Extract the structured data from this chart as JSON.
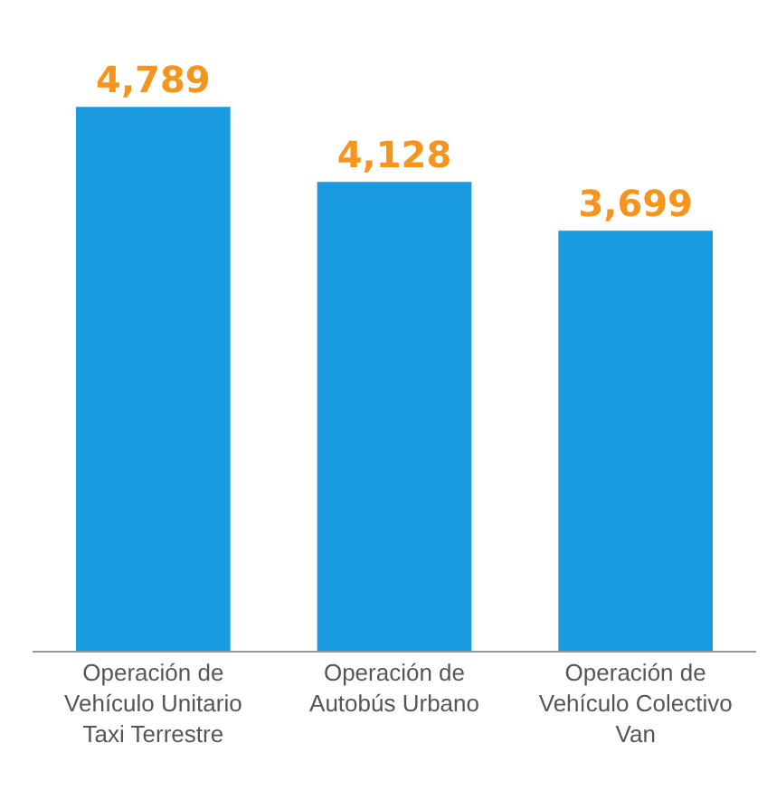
{
  "chart_data": {
    "type": "bar",
    "categories": [
      "Operación de Vehículo Unitario Taxi Terrestre",
      "Operación de Autobús Urbano",
      "Operación de Vehículo Colectivo Van"
    ],
    "values": [
      4789,
      4128,
      3699
    ],
    "value_labels": [
      "4,789",
      "4,128",
      "3,699"
    ],
    "color": "#1a9be0"
  }
}
